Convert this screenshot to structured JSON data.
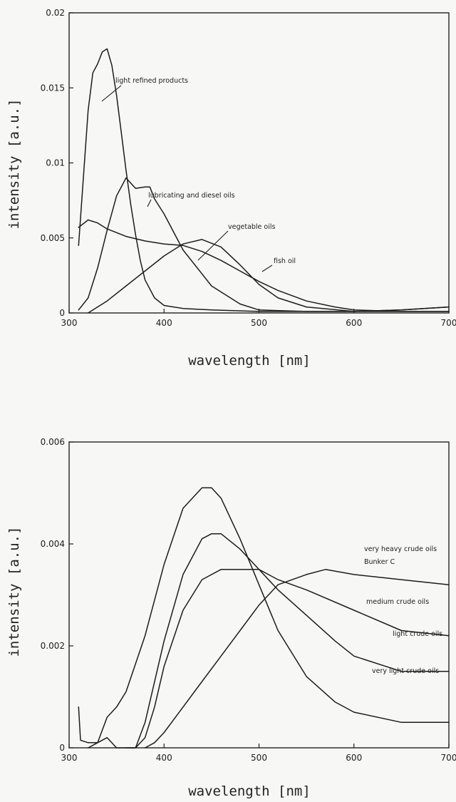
{
  "chart_data": [
    {
      "type": "line",
      "xlabel": "wavelength [nm]",
      "ylabel": "intensity [a.u.]",
      "xlim": [
        300,
        700
      ],
      "ylim": [
        0,
        0.02
      ],
      "x_ticks": [
        "300",
        "400",
        "500",
        "600",
        "700"
      ],
      "y_ticks": [
        "0",
        "0.005",
        "0.01",
        "0.015",
        "0.02"
      ],
      "grid": false,
      "series": [
        {
          "name": "light refined products",
          "x": [
            310,
            315,
            320,
            325,
            330,
            335,
            340,
            345,
            350,
            355,
            360,
            365,
            370,
            375,
            380,
            390,
            400,
            420,
            450,
            500,
            550,
            600,
            650,
            700
          ],
          "y": [
            0.0045,
            0.009,
            0.0135,
            0.016,
            0.0166,
            0.0174,
            0.0176,
            0.0165,
            0.0145,
            0.012,
            0.0095,
            0.0072,
            0.0052,
            0.0035,
            0.0022,
            0.001,
            0.0005,
            0.0003,
            0.0002,
            0.0001,
            0.0001,
            0.0001,
            0.0001,
            0.0001
          ]
        },
        {
          "name": "lubricating and diesel oils",
          "x": [
            310,
            320,
            330,
            340,
            350,
            360,
            370,
            380,
            385,
            390,
            400,
            420,
            450,
            480,
            500,
            550,
            600,
            650,
            700
          ],
          "y": [
            0.0002,
            0.001,
            0.003,
            0.0055,
            0.0078,
            0.009,
            0.0083,
            0.0084,
            0.0084,
            0.0076,
            0.0066,
            0.0042,
            0.0018,
            0.0006,
            0.0002,
            0.0001,
            0.0001,
            0.0002,
            0.0004
          ]
        },
        {
          "name": "vegetable oils",
          "x": [
            320,
            340,
            360,
            380,
            400,
            420,
            440,
            460,
            480,
            500,
            520,
            550,
            600,
            650,
            700
          ],
          "y": [
            0.0,
            0.0008,
            0.0018,
            0.0028,
            0.0038,
            0.0046,
            0.0049,
            0.0044,
            0.0032,
            0.0019,
            0.001,
            0.0004,
            0.0001,
            0.0002,
            0.0004
          ]
        },
        {
          "name": "fish oil",
          "x": [
            310,
            320,
            330,
            340,
            360,
            380,
            400,
            420,
            440,
            460,
            480,
            500,
            520,
            550,
            580,
            600,
            650,
            700
          ],
          "y": [
            0.0057,
            0.0062,
            0.006,
            0.0056,
            0.0051,
            0.0048,
            0.0046,
            0.0045,
            0.0041,
            0.0035,
            0.0028,
            0.0021,
            0.0015,
            0.0008,
            0.0004,
            0.0002,
            0.0001,
            0.0001
          ]
        }
      ]
    },
    {
      "type": "line",
      "xlabel": "wavelength [nm]",
      "ylabel": "intensity [a.u.]",
      "xlim": [
        300,
        700
      ],
      "ylim": [
        0,
        0.006
      ],
      "x_ticks": [
        "300",
        "400",
        "500",
        "600",
        "700"
      ],
      "y_ticks": [
        "0",
        "0.002",
        "0.004",
        "0.006"
      ],
      "grid": false,
      "series": [
        {
          "name": "very light crude oils",
          "x": [
            310,
            312,
            320,
            330,
            340,
            350,
            360,
            380,
            400,
            420,
            440,
            450,
            460,
            480,
            500,
            520,
            550,
            580,
            600,
            650,
            700
          ],
          "y": [
            0.0008,
            0.00015,
            0.0001,
            0.0001,
            0.0006,
            0.0008,
            0.0011,
            0.0022,
            0.0036,
            0.0047,
            0.0051,
            0.0051,
            0.0049,
            0.0041,
            0.0032,
            0.0023,
            0.0014,
            0.0009,
            0.0007,
            0.0005,
            0.0005
          ]
        },
        {
          "name": "light crude oils",
          "x": [
            320,
            330,
            340,
            350,
            360,
            370,
            380,
            400,
            420,
            440,
            450,
            460,
            480,
            500,
            520,
            550,
            580,
            600,
            650,
            700
          ],
          "y": [
            0.0,
            0.0001,
            0.0002,
            0.0,
            0.0,
            0.0,
            0.0005,
            0.0021,
            0.0034,
            0.0041,
            0.0042,
            0.0042,
            0.0039,
            0.0035,
            0.0031,
            0.0026,
            0.0021,
            0.0018,
            0.0015,
            0.0015
          ]
        },
        {
          "name": "medium crude oils",
          "x": [
            360,
            370,
            380,
            390,
            400,
            420,
            440,
            460,
            480,
            500,
            520,
            550,
            600,
            650,
            700
          ],
          "y": [
            0.0,
            0.0,
            0.0002,
            0.0008,
            0.0016,
            0.0027,
            0.0033,
            0.0035,
            0.0035,
            0.0035,
            0.0033,
            0.0031,
            0.0027,
            0.0023,
            0.0022
          ]
        },
        {
          "name": "very heavy crude oils",
          "x": [
            380,
            390,
            400,
            420,
            440,
            460,
            480,
            500,
            520,
            550,
            570,
            600,
            650,
            700
          ],
          "y": [
            0.0,
            0.0001,
            0.0003,
            0.0008,
            0.0013,
            0.0018,
            0.0023,
            0.0028,
            0.0032,
            0.0034,
            0.0035,
            0.0034,
            0.0033,
            0.0032
          ]
        }
      ],
      "annotations": [
        "very heavy crude oils",
        "Bunker C"
      ]
    }
  ]
}
